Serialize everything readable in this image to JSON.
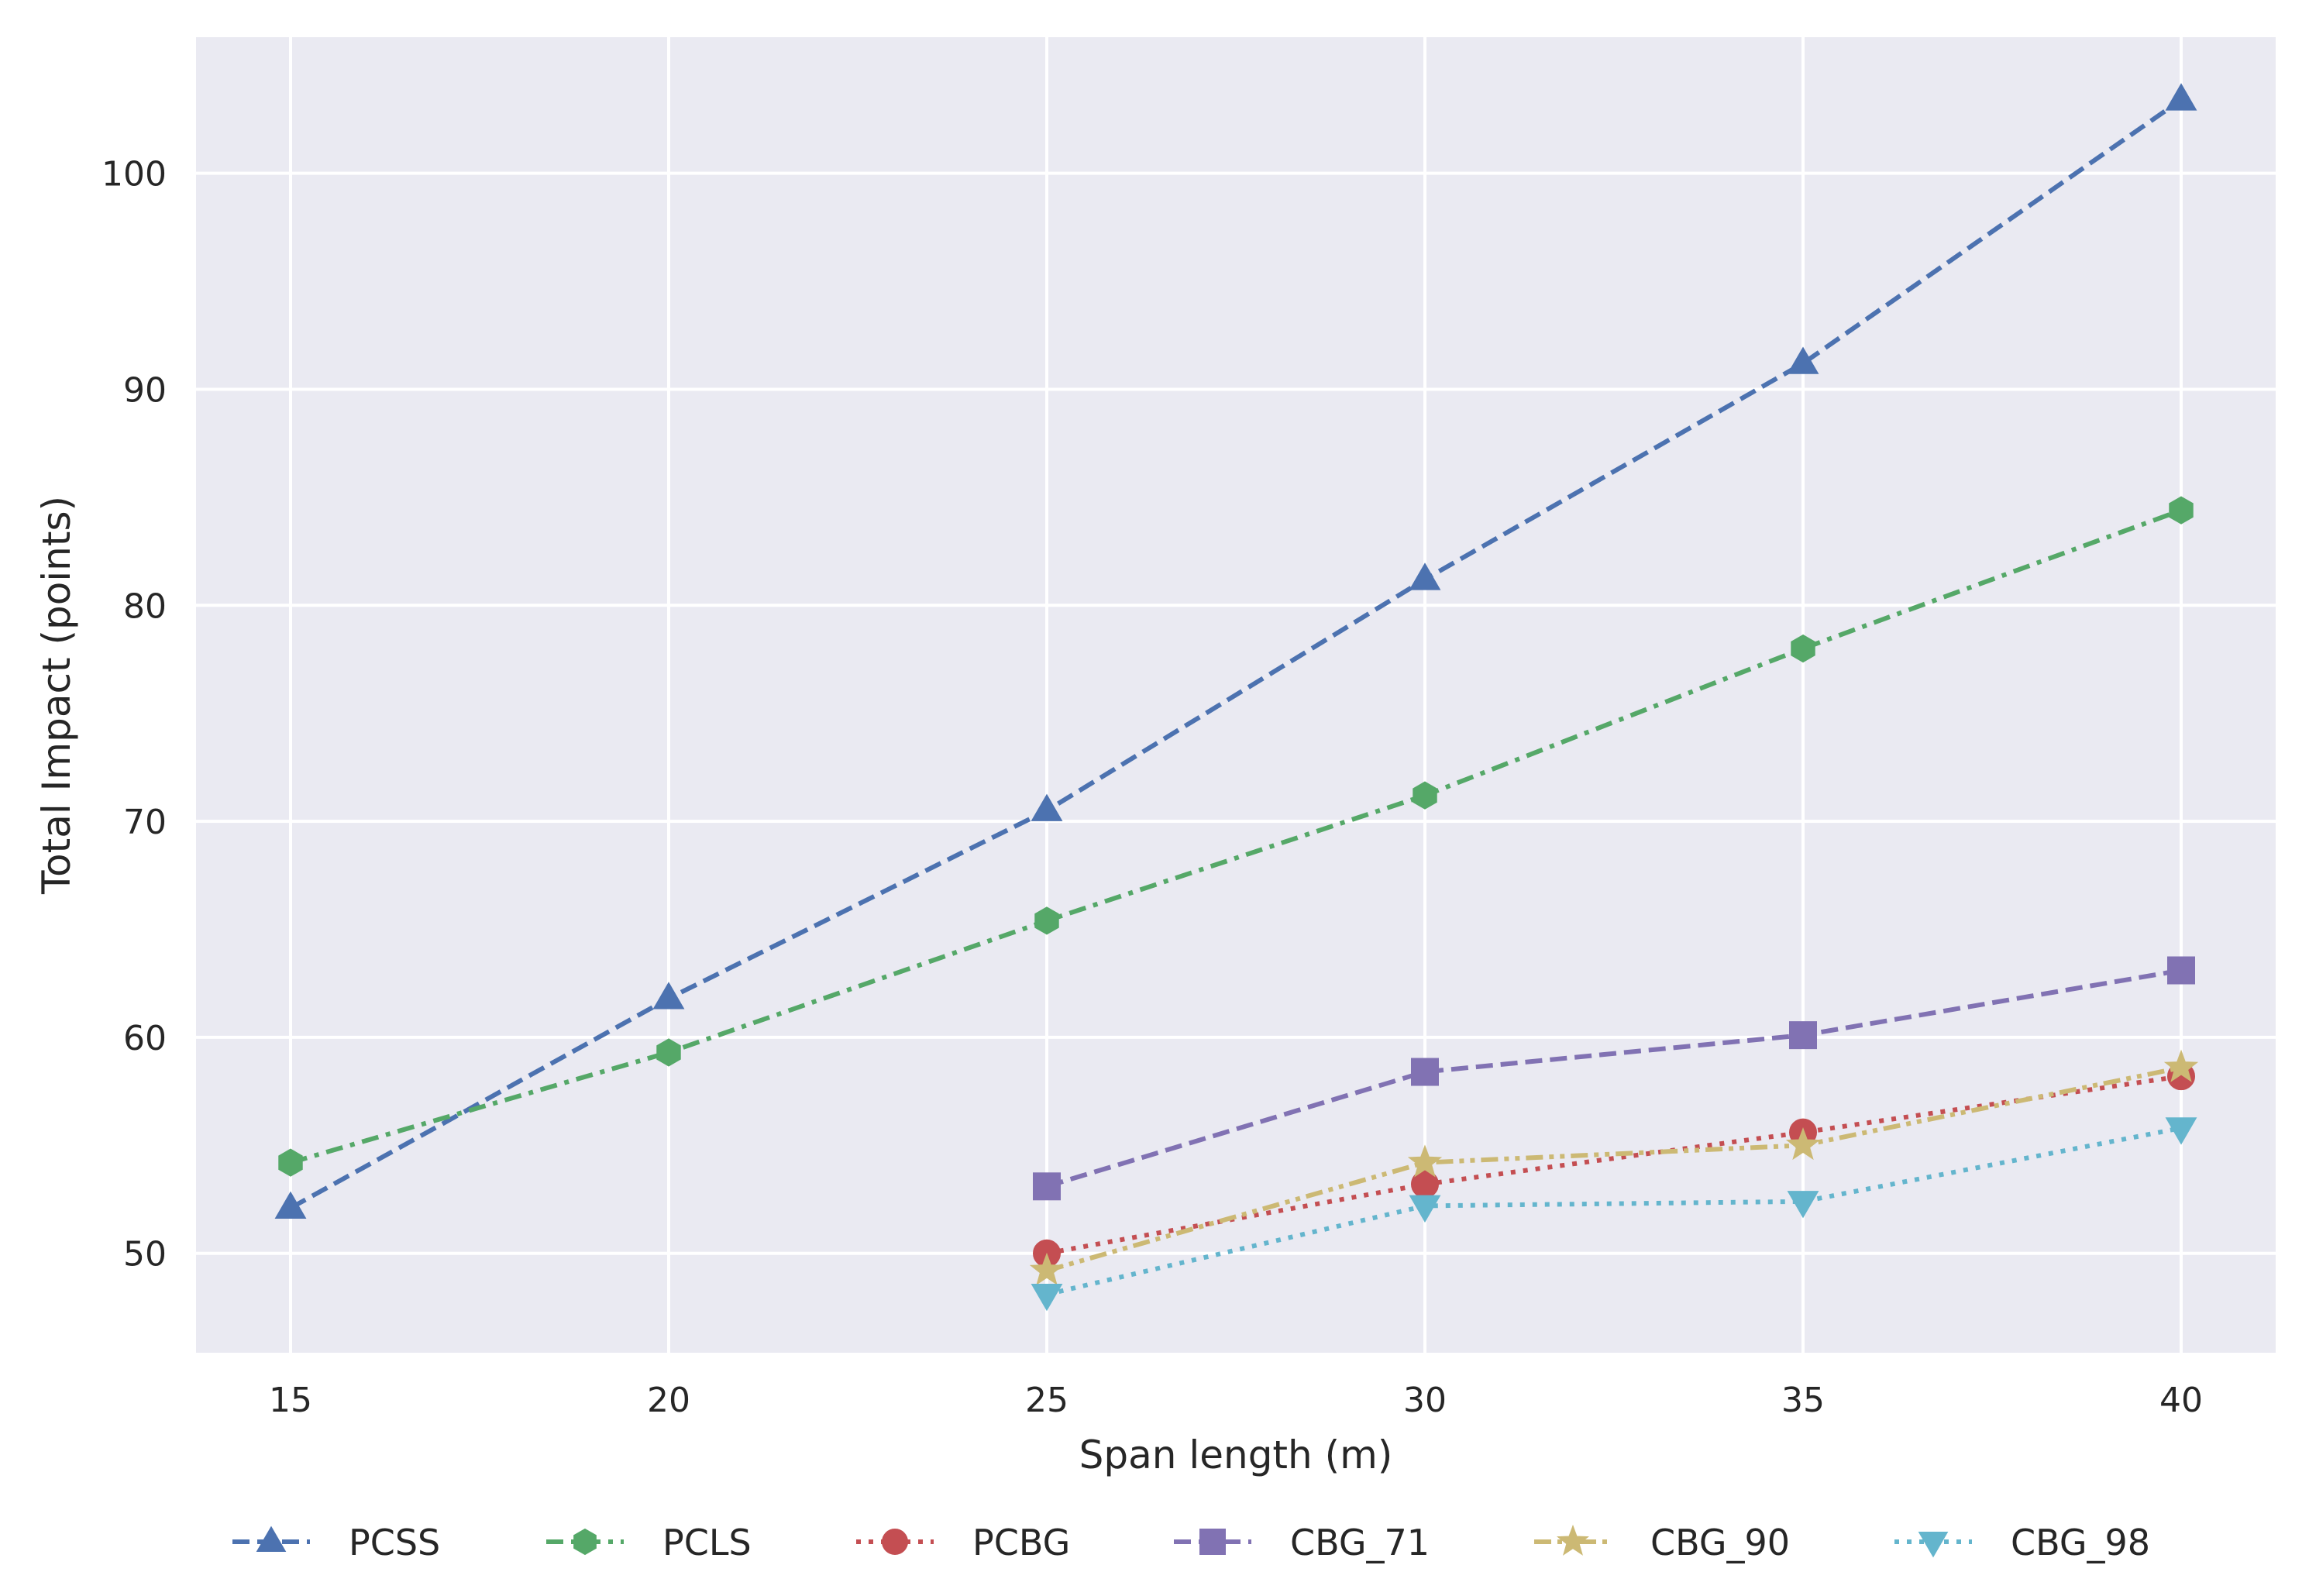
{
  "chart_data": {
    "type": "line",
    "title": "",
    "xlabel": "Span length (m)",
    "ylabel": "Total Impact (points)",
    "xlim": [
      13.75,
      41.25
    ],
    "ylim": [
      45.4,
      106.3
    ],
    "xticks": [
      15,
      20,
      25,
      30,
      35,
      40
    ],
    "yticks": [
      50,
      60,
      70,
      80,
      90,
      100
    ],
    "grid": true,
    "legend_position": "bottom",
    "series": [
      {
        "name": "PCSS",
        "color": "#4C72B0",
        "linestyle": "dashed",
        "marker": "triangle-up",
        "x": [
          15,
          20,
          25,
          30,
          35,
          40
        ],
        "y": [
          52.1,
          61.8,
          70.5,
          81.2,
          91.2,
          103.4
        ]
      },
      {
        "name": "PCLS",
        "color": "#55A868",
        "linestyle": "dashdot",
        "marker": "hexagon",
        "x": [
          15,
          20,
          25,
          30,
          35,
          40
        ],
        "y": [
          54.2,
          59.3,
          65.4,
          71.2,
          78.0,
          84.4
        ]
      },
      {
        "name": "PCBG",
        "color": "#C44E52",
        "linestyle": "dotted",
        "marker": "circle",
        "x": [
          25,
          30,
          35,
          40
        ],
        "y": [
          50.0,
          53.2,
          55.6,
          58.2
        ]
      },
      {
        "name": "CBG_71",
        "color": "#8172B3",
        "linestyle": "dashed",
        "marker": "square",
        "x": [
          25,
          30,
          35,
          40
        ],
        "y": [
          53.1,
          58.4,
          60.1,
          63.1
        ]
      },
      {
        "name": "CBG_90",
        "color": "#CCB974",
        "linestyle": "dashdotdot",
        "marker": "star",
        "x": [
          25,
          30,
          35,
          40
        ],
        "y": [
          49.2,
          54.2,
          55.0,
          58.6
        ]
      },
      {
        "name": "CBG_98",
        "color": "#64B5CD",
        "linestyle": "dotted",
        "marker": "triangle-down",
        "x": [
          25,
          30,
          35,
          40
        ],
        "y": [
          48.1,
          52.2,
          52.4,
          55.8
        ]
      }
    ]
  }
}
